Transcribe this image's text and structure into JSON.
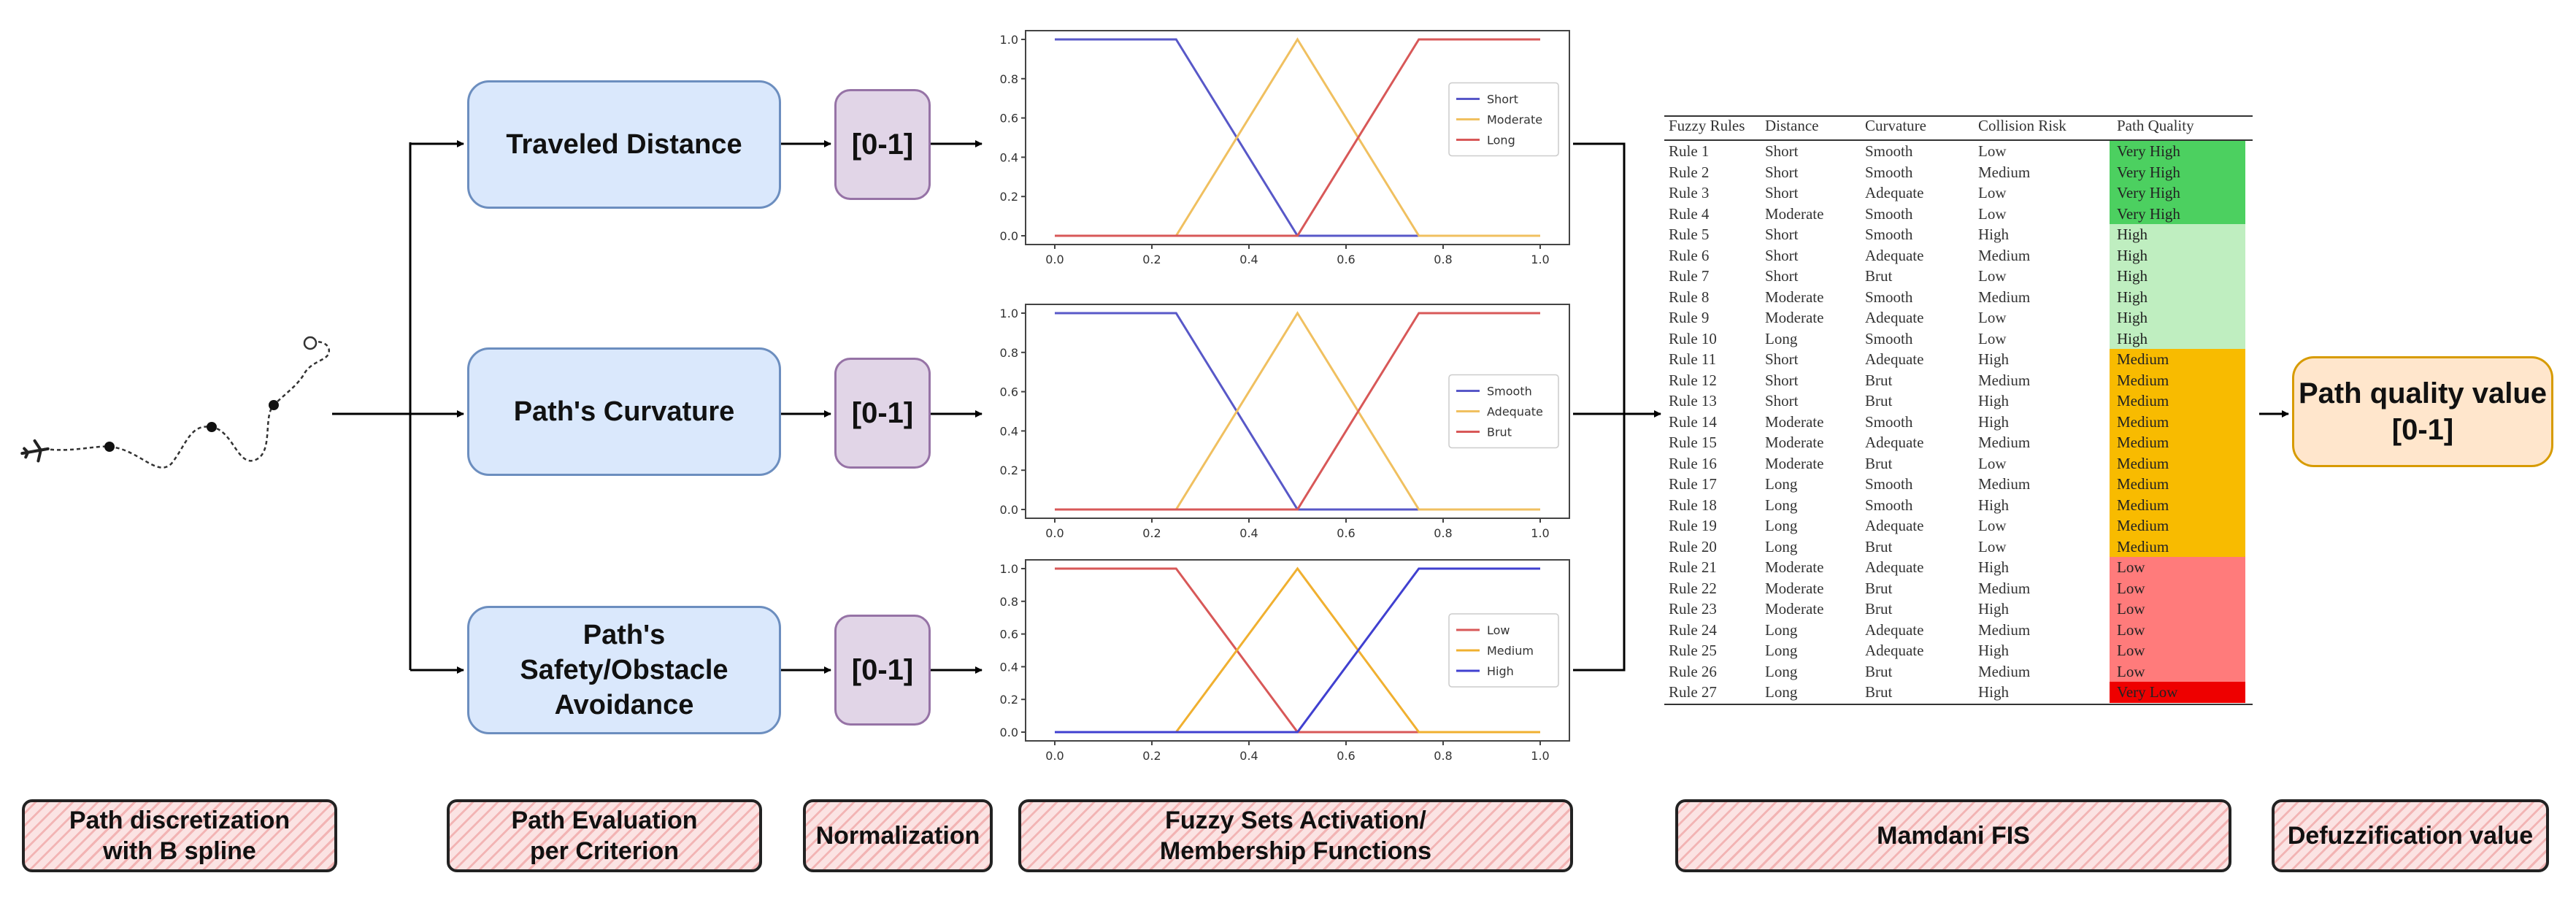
{
  "criteria": [
    {
      "label": "Traveled Distance",
      "norm": "[0-1]"
    },
    {
      "label": "Path's Curvature",
      "norm": "[0-1]"
    },
    {
      "label": "Path's Safety/Obstacle Avoidance",
      "norm": "[0-1]"
    }
  ],
  "output": {
    "line1": "Path quality value",
    "line2": "[0-1]"
  },
  "stages": {
    "s1": {
      "line1": "Path discretization",
      "line2": "with B spline"
    },
    "s2": {
      "line1": "Path Evaluation",
      "line2": "per Criterion"
    },
    "s3": {
      "line1": "Normalization"
    },
    "s4": {
      "line1": "Fuzzy Sets Activation/",
      "line2": "Membership Functions"
    },
    "s5": {
      "line1": "Mamdani FIS"
    },
    "s6": {
      "line1": "Defuzzification value"
    }
  },
  "chart_data": [
    {
      "type": "line",
      "x": [
        0.0,
        0.25,
        0.5,
        0.75,
        1.0
      ],
      "xticks": [
        "0.0",
        "0.2",
        "0.4",
        "0.6",
        "0.8",
        "1.0"
      ],
      "yticks": [
        "0.0",
        "0.2",
        "0.4",
        "0.6",
        "0.8",
        "1.0"
      ],
      "xlim": [
        0,
        1
      ],
      "ylim": [
        0,
        1
      ],
      "legend": "right",
      "series": [
        {
          "name": "Short",
          "color": "#5858c8",
          "values": [
            1,
            1,
            0,
            0,
            0
          ]
        },
        {
          "name": "Moderate",
          "color": "#f0c060",
          "values": [
            0,
            0,
            1,
            0,
            0
          ]
        },
        {
          "name": "Long",
          "color": "#d85858",
          "values": [
            0,
            0,
            0,
            1,
            1
          ]
        }
      ]
    },
    {
      "type": "line",
      "x": [
        0.0,
        0.25,
        0.5,
        0.75,
        1.0
      ],
      "xticks": [
        "0.0",
        "0.2",
        "0.4",
        "0.6",
        "0.8",
        "1.0"
      ],
      "yticks": [
        "0.0",
        "0.2",
        "0.4",
        "0.6",
        "0.8",
        "1.0"
      ],
      "xlim": [
        0,
        1
      ],
      "ylim": [
        0,
        1
      ],
      "legend": "right",
      "series": [
        {
          "name": "Smooth",
          "color": "#5858c8",
          "values": [
            1,
            1,
            0,
            0,
            0
          ]
        },
        {
          "name": "Adequate",
          "color": "#f0c060",
          "values": [
            0,
            0,
            1,
            0,
            0
          ]
        },
        {
          "name": "Brut",
          "color": "#d85858",
          "values": [
            0,
            0,
            0,
            1,
            1
          ]
        }
      ]
    },
    {
      "type": "line",
      "x": [
        0.0,
        0.25,
        0.5,
        0.75,
        1.0
      ],
      "xticks": [
        "0.0",
        "0.2",
        "0.4",
        "0.6",
        "0.8",
        "1.0"
      ],
      "yticks": [
        "0.0",
        "0.2",
        "0.4",
        "0.6",
        "0.8",
        "1.0"
      ],
      "xlim": [
        0,
        1
      ],
      "ylim": [
        0,
        1
      ],
      "legend": "right",
      "series": [
        {
          "name": "Low",
          "color": "#d85858",
          "values": [
            1,
            1,
            0,
            0,
            0
          ]
        },
        {
          "name": "Medium",
          "color": "#f0b030",
          "values": [
            0,
            0,
            1,
            0,
            0
          ]
        },
        {
          "name": "High",
          "color": "#4040d0",
          "values": [
            0,
            0,
            0,
            1,
            1
          ]
        }
      ]
    }
  ],
  "rules": {
    "headers": [
      "Fuzzy Rules",
      "Distance",
      "Curvature",
      "Collision Risk",
      "Path Quality"
    ],
    "quality_colors": {
      "Very High": "#4cd060",
      "High": "#bfeec0",
      "Medium": "#f8bb00",
      "Low": "#ff7b7b",
      "Very Low": "#ee0000"
    },
    "rows": [
      [
        "Rule 1",
        "Short",
        "Smooth",
        "Low",
        "Very High"
      ],
      [
        "Rule 2",
        "Short",
        "Smooth",
        "Medium",
        "Very High"
      ],
      [
        "Rule 3",
        "Short",
        "Adequate",
        "Low",
        "Very High"
      ],
      [
        "Rule 4",
        "Moderate",
        "Smooth",
        "Low",
        "Very High"
      ],
      [
        "Rule 5",
        "Short",
        "Smooth",
        "High",
        "High"
      ],
      [
        "Rule 6",
        "Short",
        "Adequate",
        "Medium",
        "High"
      ],
      [
        "Rule 7",
        "Short",
        "Brut",
        "Low",
        "High"
      ],
      [
        "Rule 8",
        "Moderate",
        "Smooth",
        "Medium",
        "High"
      ],
      [
        "Rule 9",
        "Moderate",
        "Adequate",
        "Low",
        "High"
      ],
      [
        "Rule 10",
        "Long",
        "Smooth",
        "Low",
        "High"
      ],
      [
        "Rule 11",
        "Short",
        "Adequate",
        "High",
        "Medium"
      ],
      [
        "Rule 12",
        "Short",
        "Brut",
        "Medium",
        "Medium"
      ],
      [
        "Rule 13",
        "Short",
        "Brut",
        "High",
        "Medium"
      ],
      [
        "Rule 14",
        "Moderate",
        "Smooth",
        "High",
        "Medium"
      ],
      [
        "Rule 15",
        "Moderate",
        "Adequate",
        "Medium",
        "Medium"
      ],
      [
        "Rule 16",
        "Moderate",
        "Brut",
        "Low",
        "Medium"
      ],
      [
        "Rule 17",
        "Long",
        "Smooth",
        "Medium",
        "Medium"
      ],
      [
        "Rule 18",
        "Long",
        "Smooth",
        "High",
        "Medium"
      ],
      [
        "Rule 19",
        "Long",
        "Adequate",
        "Low",
        "Medium"
      ],
      [
        "Rule 20",
        "Long",
        "Brut",
        "Low",
        "Medium"
      ],
      [
        "Rule 21",
        "Moderate",
        "Adequate",
        "High",
        "Low"
      ],
      [
        "Rule 22",
        "Moderate",
        "Brut",
        "Medium",
        "Low"
      ],
      [
        "Rule 23",
        "Moderate",
        "Brut",
        "High",
        "Low"
      ],
      [
        "Rule 24",
        "Long",
        "Adequate",
        "Medium",
        "Low"
      ],
      [
        "Rule 25",
        "Long",
        "Adequate",
        "High",
        "Low"
      ],
      [
        "Rule 26",
        "Long",
        "Brut",
        "Medium",
        "Low"
      ],
      [
        "Rule 27",
        "Long",
        "Brut",
        "High",
        "Very Low"
      ]
    ]
  }
}
